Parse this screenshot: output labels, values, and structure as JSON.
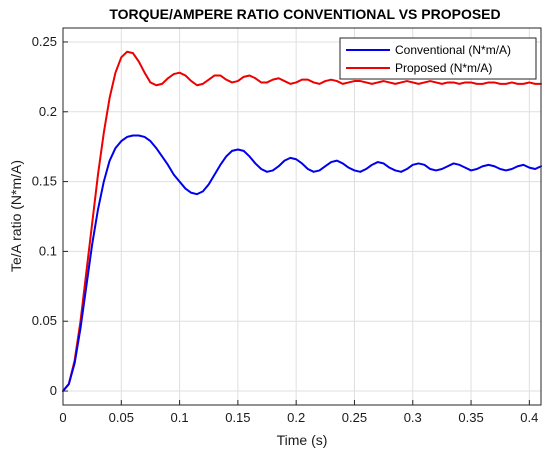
{
  "chart_data": {
    "type": "line",
    "title": "TORQUE/AMPERE RATIO CONVENTIONAL VS PROPOSED",
    "xlabel": "Time (s)",
    "ylabel": "Te/A ratio (N*m/A)",
    "xlim": [
      0,
      0.41
    ],
    "ylim": [
      -0.01,
      0.26
    ],
    "xticks": [
      0,
      0.05,
      0.1,
      0.15,
      0.2,
      0.25,
      0.3,
      0.35,
      0.4
    ],
    "xtick_labels": [
      "0",
      "0.05",
      "0.1",
      "0.15",
      "0.2",
      "0.25",
      "0.3",
      "0.35",
      "0.4"
    ],
    "yticks": [
      0,
      0.05,
      0.1,
      0.15,
      0.2,
      0.25
    ],
    "ytick_labels": [
      "0",
      "0.05",
      "0.1",
      "0.15",
      "0.2",
      "0.25"
    ],
    "grid": true,
    "legend_position": "top-right",
    "series": [
      {
        "name": "Conventional (N*m/A)",
        "color": "#0000ee",
        "points": [
          [
            0,
            0
          ],
          [
            0.005,
            0.005
          ],
          [
            0.01,
            0.02
          ],
          [
            0.015,
            0.045
          ],
          [
            0.02,
            0.075
          ],
          [
            0.025,
            0.105
          ],
          [
            0.03,
            0.13
          ],
          [
            0.035,
            0.15
          ],
          [
            0.04,
            0.165
          ],
          [
            0.045,
            0.174
          ],
          [
            0.05,
            0.179
          ],
          [
            0.055,
            0.182
          ],
          [
            0.06,
            0.183
          ],
          [
            0.065,
            0.183
          ],
          [
            0.07,
            0.182
          ],
          [
            0.075,
            0.179
          ],
          [
            0.08,
            0.174
          ],
          [
            0.085,
            0.168
          ],
          [
            0.09,
            0.162
          ],
          [
            0.095,
            0.155
          ],
          [
            0.1,
            0.15
          ],
          [
            0.105,
            0.145
          ],
          [
            0.11,
            0.142
          ],
          [
            0.115,
            0.141
          ],
          [
            0.12,
            0.143
          ],
          [
            0.125,
            0.148
          ],
          [
            0.13,
            0.155
          ],
          [
            0.135,
            0.162
          ],
          [
            0.14,
            0.168
          ],
          [
            0.145,
            0.172
          ],
          [
            0.15,
            0.173
          ],
          [
            0.155,
            0.172
          ],
          [
            0.16,
            0.168
          ],
          [
            0.165,
            0.163
          ],
          [
            0.17,
            0.159
          ],
          [
            0.175,
            0.157
          ],
          [
            0.18,
            0.158
          ],
          [
            0.185,
            0.161
          ],
          [
            0.19,
            0.165
          ],
          [
            0.195,
            0.167
          ],
          [
            0.2,
            0.166
          ],
          [
            0.205,
            0.163
          ],
          [
            0.21,
            0.159
          ],
          [
            0.215,
            0.157
          ],
          [
            0.22,
            0.158
          ],
          [
            0.225,
            0.161
          ],
          [
            0.23,
            0.164
          ],
          [
            0.235,
            0.165
          ],
          [
            0.24,
            0.163
          ],
          [
            0.245,
            0.16
          ],
          [
            0.25,
            0.158
          ],
          [
            0.255,
            0.157
          ],
          [
            0.26,
            0.159
          ],
          [
            0.265,
            0.162
          ],
          [
            0.27,
            0.164
          ],
          [
            0.275,
            0.163
          ],
          [
            0.28,
            0.16
          ],
          [
            0.285,
            0.158
          ],
          [
            0.29,
            0.157
          ],
          [
            0.295,
            0.159
          ],
          [
            0.3,
            0.162
          ],
          [
            0.305,
            0.163
          ],
          [
            0.31,
            0.162
          ],
          [
            0.315,
            0.159
          ],
          [
            0.32,
            0.158
          ],
          [
            0.325,
            0.159
          ],
          [
            0.33,
            0.161
          ],
          [
            0.335,
            0.163
          ],
          [
            0.34,
            0.162
          ],
          [
            0.345,
            0.16
          ],
          [
            0.35,
            0.158
          ],
          [
            0.355,
            0.159
          ],
          [
            0.36,
            0.161
          ],
          [
            0.365,
            0.162
          ],
          [
            0.37,
            0.161
          ],
          [
            0.375,
            0.159
          ],
          [
            0.38,
            0.158
          ],
          [
            0.385,
            0.159
          ],
          [
            0.39,
            0.161
          ],
          [
            0.395,
            0.162
          ],
          [
            0.4,
            0.16
          ],
          [
            0.405,
            0.159
          ],
          [
            0.41,
            0.161
          ]
        ]
      },
      {
        "name": "Proposed (N*m/A)",
        "color": "#ee0000",
        "points": [
          [
            0,
            0
          ],
          [
            0.005,
            0.005
          ],
          [
            0.01,
            0.022
          ],
          [
            0.015,
            0.05
          ],
          [
            0.02,
            0.085
          ],
          [
            0.025,
            0.12
          ],
          [
            0.03,
            0.155
          ],
          [
            0.035,
            0.185
          ],
          [
            0.04,
            0.21
          ],
          [
            0.045,
            0.228
          ],
          [
            0.05,
            0.239
          ],
          [
            0.055,
            0.243
          ],
          [
            0.06,
            0.242
          ],
          [
            0.065,
            0.236
          ],
          [
            0.07,
            0.228
          ],
          [
            0.075,
            0.221
          ],
          [
            0.08,
            0.219
          ],
          [
            0.085,
            0.22
          ],
          [
            0.09,
            0.224
          ],
          [
            0.095,
            0.227
          ],
          [
            0.1,
            0.228
          ],
          [
            0.105,
            0.226
          ],
          [
            0.11,
            0.222
          ],
          [
            0.115,
            0.219
          ],
          [
            0.12,
            0.22
          ],
          [
            0.125,
            0.223
          ],
          [
            0.13,
            0.226
          ],
          [
            0.135,
            0.226
          ],
          [
            0.14,
            0.223
          ],
          [
            0.145,
            0.221
          ],
          [
            0.15,
            0.222
          ],
          [
            0.155,
            0.225
          ],
          [
            0.16,
            0.226
          ],
          [
            0.165,
            0.224
          ],
          [
            0.17,
            0.221
          ],
          [
            0.175,
            0.221
          ],
          [
            0.18,
            0.223
          ],
          [
            0.185,
            0.224
          ],
          [
            0.19,
            0.222
          ],
          [
            0.195,
            0.22
          ],
          [
            0.2,
            0.221
          ],
          [
            0.205,
            0.223
          ],
          [
            0.21,
            0.223
          ],
          [
            0.215,
            0.221
          ],
          [
            0.22,
            0.22
          ],
          [
            0.225,
            0.222
          ],
          [
            0.23,
            0.223
          ],
          [
            0.235,
            0.222
          ],
          [
            0.24,
            0.22
          ],
          [
            0.245,
            0.221
          ],
          [
            0.25,
            0.222
          ],
          [
            0.255,
            0.222
          ],
          [
            0.26,
            0.221
          ],
          [
            0.265,
            0.22
          ],
          [
            0.27,
            0.221
          ],
          [
            0.275,
            0.222
          ],
          [
            0.28,
            0.221
          ],
          [
            0.285,
            0.22
          ],
          [
            0.29,
            0.221
          ],
          [
            0.295,
            0.222
          ],
          [
            0.3,
            0.221
          ],
          [
            0.305,
            0.22
          ],
          [
            0.31,
            0.221
          ],
          [
            0.315,
            0.222
          ],
          [
            0.32,
            0.221
          ],
          [
            0.325,
            0.22
          ],
          [
            0.33,
            0.221
          ],
          [
            0.335,
            0.221
          ],
          [
            0.34,
            0.22
          ],
          [
            0.345,
            0.221
          ],
          [
            0.35,
            0.221
          ],
          [
            0.355,
            0.22
          ],
          [
            0.36,
            0.22
          ],
          [
            0.365,
            0.221
          ],
          [
            0.37,
            0.221
          ],
          [
            0.375,
            0.22
          ],
          [
            0.38,
            0.22
          ],
          [
            0.385,
            0.221
          ],
          [
            0.39,
            0.22
          ],
          [
            0.395,
            0.22
          ],
          [
            0.4,
            0.221
          ],
          [
            0.405,
            0.22
          ],
          [
            0.41,
            0.22
          ]
        ]
      }
    ]
  }
}
